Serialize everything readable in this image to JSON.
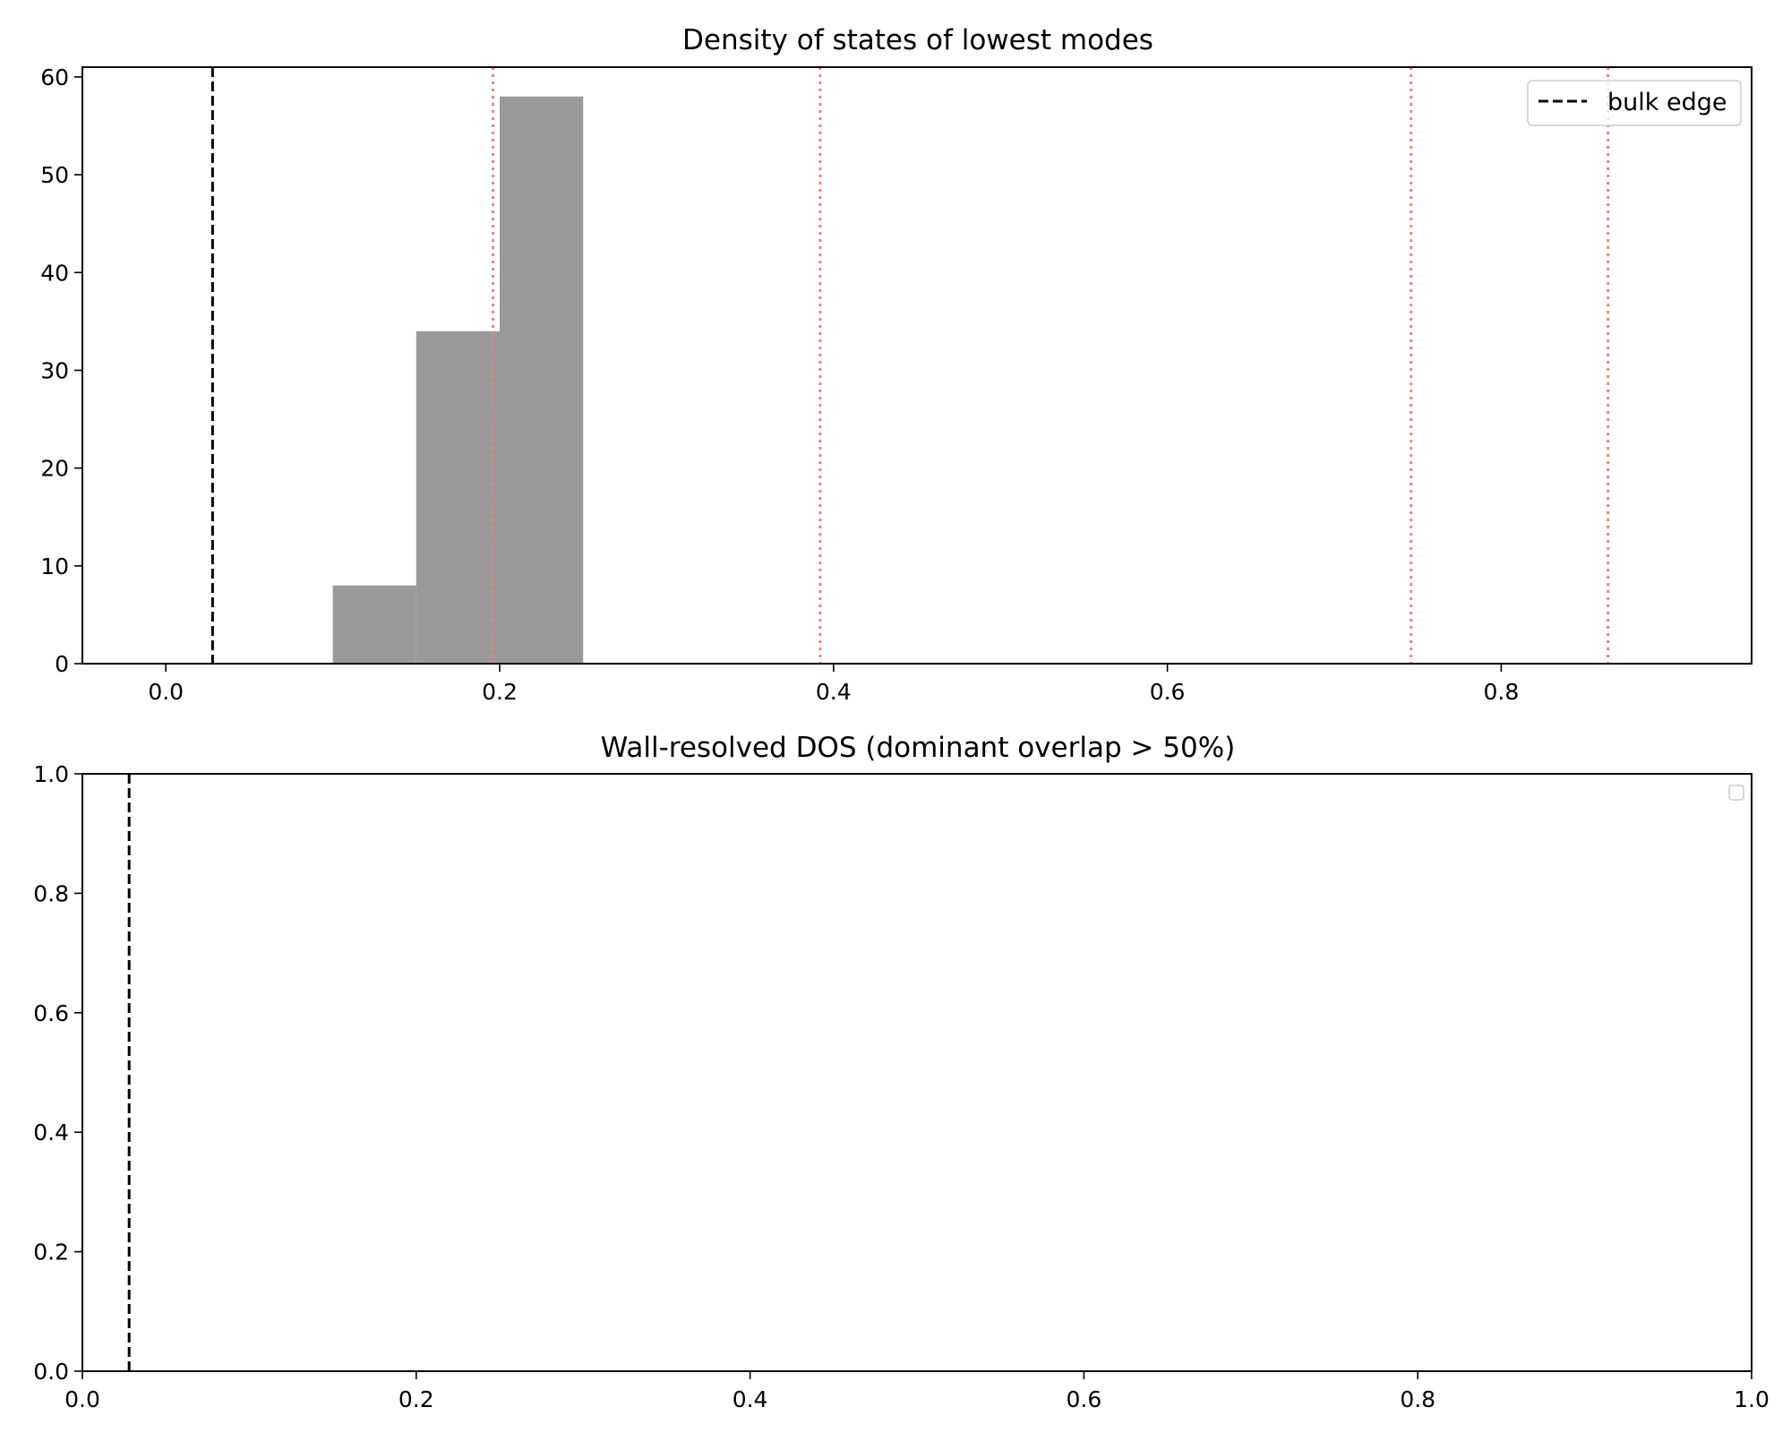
{
  "chart_data": [
    {
      "type": "bar",
      "title": "Density of states of lowest modes",
      "xlabel": "",
      "ylabel": "",
      "xlim": [
        -0.05,
        0.95
      ],
      "ylim": [
        0,
        61
      ],
      "xticks": [
        0.0,
        0.2,
        0.4,
        0.6,
        0.8
      ],
      "xtick_labels": [
        "0.0",
        "0.2",
        "0.4",
        "0.6",
        "0.8"
      ],
      "yticks": [
        0,
        10,
        20,
        30,
        40,
        50,
        60
      ],
      "ytick_labels": [
        "0",
        "10",
        "20",
        "30",
        "40",
        "50",
        "60"
      ],
      "histogram": {
        "bin_edges": [
          0.1,
          0.15,
          0.2,
          0.25
        ],
        "counts": [
          8,
          34,
          58
        ],
        "color": "#999999"
      },
      "bulk_edge": {
        "x": 0.028,
        "label": "bulk edge",
        "color": "#000000"
      },
      "wall_lines": {
        "x": [
          0.196,
          0.392,
          0.746,
          0.864
        ],
        "color": "#f08080"
      },
      "legend": {
        "position": "top-right",
        "entries": [
          "bulk edge"
        ]
      },
      "grid": false
    },
    {
      "type": "bar",
      "title": "Wall-resolved DOS (dominant overlap > 50%)",
      "xlabel": "",
      "ylabel": "",
      "xlim": [
        0,
        1
      ],
      "ylim": [
        0,
        1
      ],
      "xticks": [
        0.0,
        0.2,
        0.4,
        0.6,
        0.8,
        1.0
      ],
      "xtick_labels": [
        "0.0",
        "0.2",
        "0.4",
        "0.6",
        "0.8",
        "1.0"
      ],
      "yticks": [
        0.0,
        0.2,
        0.4,
        0.6,
        0.8,
        1.0
      ],
      "ytick_labels": [
        "0.0",
        "0.2",
        "0.4",
        "0.6",
        "0.8",
        "1.0"
      ],
      "bulk_edge": {
        "x": 0.028,
        "color": "#000000"
      },
      "legend": {
        "position": "top-right",
        "entries": []
      },
      "grid": false
    }
  ]
}
